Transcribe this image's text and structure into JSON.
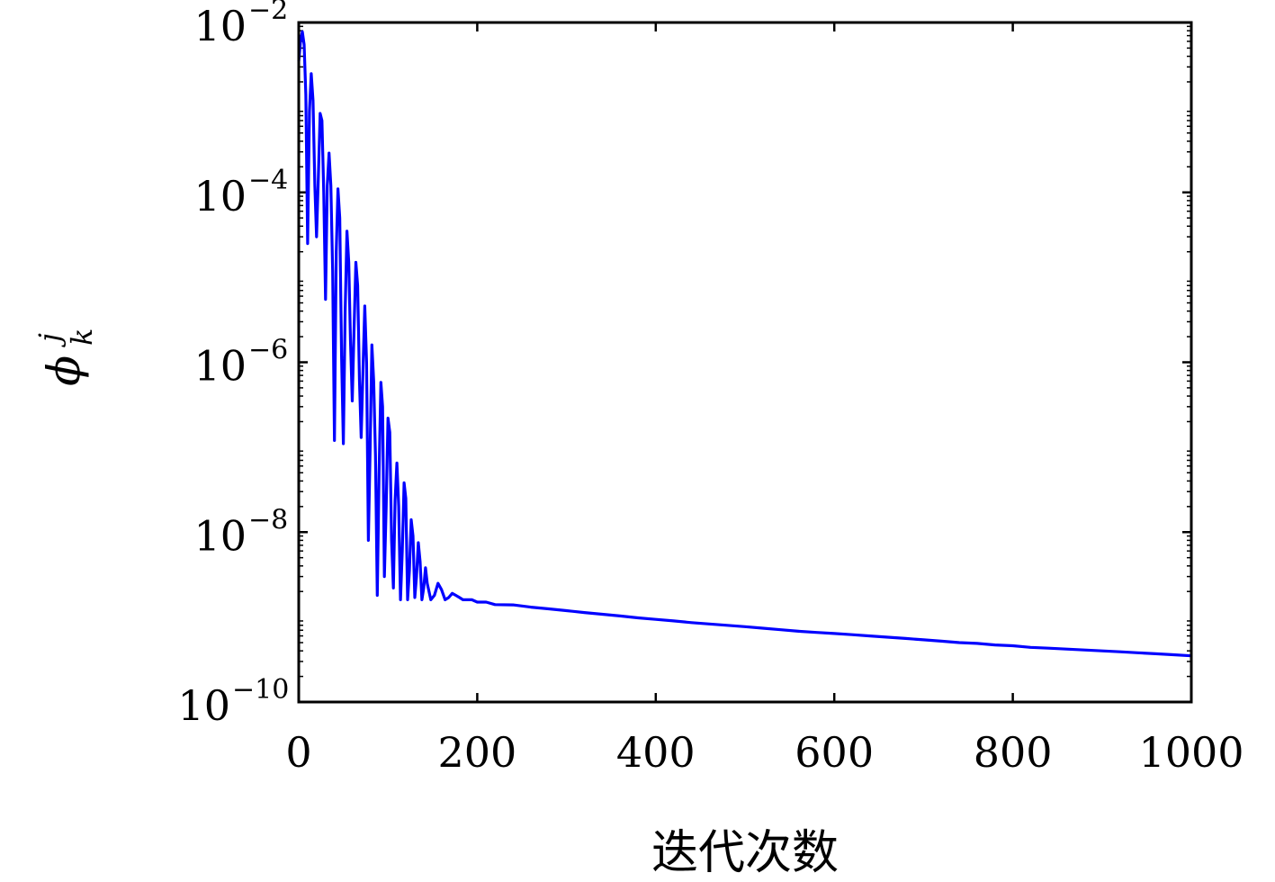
{
  "chart_data": {
    "type": "line",
    "title": "",
    "xlabel": "迭代次数",
    "ylabel": {
      "symbol": "ϕ",
      "subscript": "k",
      "superscript": "j"
    },
    "xlim": [
      0,
      1000
    ],
    "ylim": [
      1e-10,
      0.01
    ],
    "yscale": "log",
    "grid": false,
    "legend": "none",
    "xticks": [
      0,
      200,
      400,
      600,
      800,
      1000
    ],
    "xtick_labels": [
      "0",
      "200",
      "400",
      "600",
      "800",
      "1000"
    ],
    "yticks": [
      1e-10,
      1e-08,
      1e-06,
      0.0001,
      0.01
    ],
    "ytick_labels": [
      {
        "base": "10",
        "exp": "−10"
      },
      {
        "base": "10",
        "exp": "−8"
      },
      {
        "base": "10",
        "exp": "−6"
      },
      {
        "base": "10",
        "exp": "−4"
      },
      {
        "base": "10",
        "exp": "−2"
      }
    ],
    "series": [
      {
        "color": "#0000ff",
        "x": [
          0,
          2,
          4,
          6,
          8,
          10,
          12,
          14,
          16,
          18,
          20,
          22,
          24,
          26,
          28,
          30,
          32,
          34,
          36,
          38,
          40,
          42,
          44,
          46,
          48,
          50,
          52,
          54,
          56,
          58,
          60,
          62,
          64,
          66,
          68,
          70,
          72,
          74,
          76,
          78,
          80,
          82,
          84,
          86,
          88,
          90,
          92,
          94,
          96,
          98,
          100,
          102,
          104,
          106,
          108,
          110,
          112,
          114,
          116,
          118,
          120,
          122,
          124,
          126,
          128,
          130,
          132,
          134,
          136,
          138,
          140,
          142,
          144,
          148,
          152,
          156,
          160,
          164,
          168,
          172,
          176,
          180,
          184,
          188,
          194,
          200,
          210,
          220,
          240,
          260,
          280,
          300,
          320,
          340,
          360,
          380,
          400,
          420,
          440,
          460,
          480,
          500,
          520,
          540,
          560,
          580,
          600,
          620,
          640,
          660,
          680,
          700,
          720,
          740,
          760,
          780,
          800,
          820,
          840,
          860,
          880,
          900,
          920,
          940,
          960,
          980,
          1000
        ],
        "y": [
          0.0035,
          0.006,
          0.0078,
          0.0055,
          0.0014,
          2.5e-05,
          0.0009,
          0.0025,
          0.0012,
          0.00012,
          3e-05,
          0.00015,
          0.00085,
          0.0007,
          0.0001,
          5.5e-06,
          0.00012,
          0.00029,
          0.00012,
          1.2e-05,
          1.2e-07,
          2e-05,
          0.00011,
          5e-05,
          1.2e-06,
          1.1e-07,
          4e-06,
          3.5e-05,
          1.5e-05,
          1.8e-06,
          3.5e-07,
          2.5e-06,
          1.5e-05,
          8e-06,
          6e-07,
          1.3e-07,
          8e-07,
          4.6e-06,
          1e-06,
          8e-09,
          1e-07,
          1.6e-06,
          6e-07,
          8e-08,
          1.8e-09,
          5e-08,
          5.8e-07,
          3e-07,
          3e-09,
          2e-08,
          2.2e-07,
          1.5e-07,
          8e-09,
          2.2e-09,
          2.4e-08,
          6.5e-08,
          2e-08,
          1.6e-09,
          6e-09,
          3.8e-08,
          2.5e-08,
          1.6e-09,
          3.5e-09,
          1.4e-08,
          9e-09,
          1.7e-09,
          3e-09,
          7.5e-09,
          4.5e-09,
          1.6e-09,
          2.2e-09,
          3.8e-09,
          2.5e-09,
          1.6e-09,
          1.8e-09,
          2.5e-09,
          2.1e-09,
          1.6e-09,
          1.7e-09,
          1.9e-09,
          1.8e-09,
          1.7e-09,
          1.6e-09,
          1.6e-09,
          1.6e-09,
          1.5e-09,
          1.5e-09,
          1.4e-09,
          1.39e-09,
          1.31e-09,
          1.25e-09,
          1.19e-09,
          1.13e-09,
          1.08e-09,
          1.03e-09,
          9.8e-10,
          9.4e-10,
          9e-10,
          8.6e-10,
          8.3e-10,
          8e-10,
          7.7e-10,
          7.4e-10,
          7.1e-10,
          6.8e-10,
          6.6e-10,
          6.4e-10,
          6.2e-10,
          6e-10,
          5.8e-10,
          5.6e-10,
          5.4e-10,
          5.2e-10,
          5e-10,
          4.9e-10,
          4.7e-10,
          4.6e-10,
          4.4e-10,
          4.3e-10,
          4.2e-10,
          4.1e-10,
          4e-10,
          3.9e-10,
          3.8e-10,
          3.7e-10,
          3.6e-10,
          3.5e-10
        ]
      }
    ]
  }
}
